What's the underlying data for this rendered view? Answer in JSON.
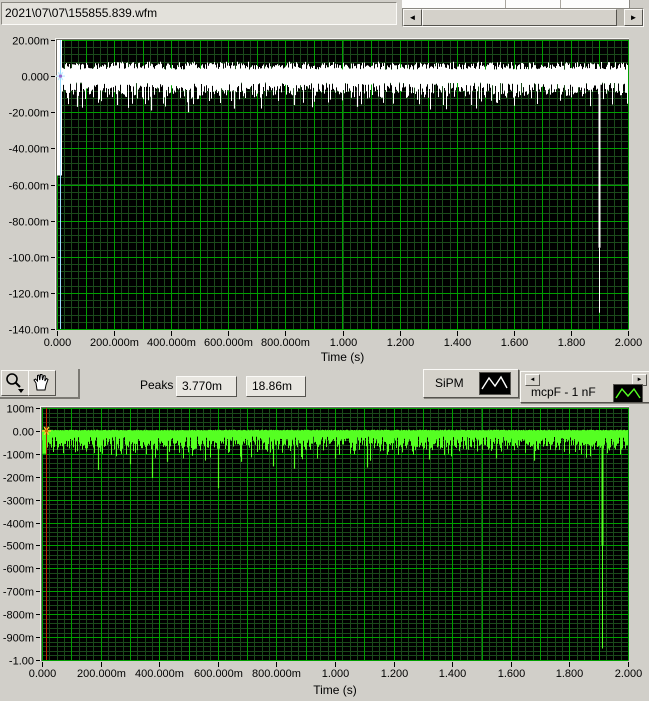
{
  "topbar": {
    "file_path": "2021\\07\\07\\155855.839.wfm",
    "scrollbar": {
      "left_arrow": "◄",
      "right_arrow": "►"
    }
  },
  "toolbar": {
    "peaks_label": "Peaks",
    "peak_values": [
      "3.770m",
      "18.86m"
    ],
    "tools": [
      "zoom",
      "pan"
    ]
  },
  "legends": [
    {
      "label": "SiPM",
      "line_color": "#ffffff"
    },
    {
      "label": "mcpF - 1 nF",
      "line_color": "#55ff22",
      "scroll_left": "◄",
      "scroll_right": "►"
    }
  ],
  "chart_data": [
    {
      "type": "line",
      "name": "SiPM waveform",
      "xlabel": "Time (s)",
      "xlim": [
        0,
        2
      ],
      "ylim": [
        -0.14,
        0.02
      ],
      "x_ticks": [
        {
          "v": 0,
          "label": "0.000"
        },
        {
          "v": 0.2,
          "label": "200.000m"
        },
        {
          "v": 0.4,
          "label": "400.000m"
        },
        {
          "v": 0.6,
          "label": "600.000m"
        },
        {
          "v": 0.8,
          "label": "800.000m"
        },
        {
          "v": 1.0,
          "label": "1.000"
        },
        {
          "v": 1.2,
          "label": "1.200"
        },
        {
          "v": 1.4,
          "label": "1.400"
        },
        {
          "v": 1.6,
          "label": "1.600"
        },
        {
          "v": 1.8,
          "label": "1.800"
        },
        {
          "v": 2.0,
          "label": "2.000"
        }
      ],
      "y_ticks": [
        {
          "v": 0.02,
          "label": "20.00m"
        },
        {
          "v": 0,
          "label": "0.000"
        },
        {
          "v": -0.02,
          "label": "-20.00m"
        },
        {
          "v": -0.04,
          "label": "-40.00m"
        },
        {
          "v": -0.06,
          "label": "-60.00m"
        },
        {
          "v": -0.08,
          "label": "-80.00m"
        },
        {
          "v": -0.1,
          "label": "-100.0m"
        },
        {
          "v": -0.12,
          "label": "-120.0m"
        },
        {
          "v": -0.14,
          "label": "-140.0m"
        }
      ],
      "grid": {
        "x_major": 0.1,
        "x_minor": 0.025,
        "y_major": 0.02,
        "y_minor": 0.004,
        "major_color": "#00a000",
        "minor_color": "#1b4a1b"
      },
      "bg": "#000000",
      "line_color": "#ffffff",
      "noise_band": {
        "top": 0.008,
        "bottom": -0.008,
        "tail_prob": 0.5,
        "tail_depth": 0.003
      },
      "spikes": [
        {
          "x": 0.008,
          "y": -0.055,
          "y_top": 0.02,
          "w": 5
        },
        {
          "x": 0.07,
          "y": -0.017
        },
        {
          "x": 0.21,
          "y": -0.016
        },
        {
          "x": 0.33,
          "y": -0.019
        },
        {
          "x": 0.46,
          "y": -0.02
        },
        {
          "x": 0.62,
          "y": -0.018
        },
        {
          "x": 0.83,
          "y": -0.016
        },
        {
          "x": 1.05,
          "y": -0.017
        },
        {
          "x": 1.45,
          "y": -0.016
        },
        {
          "x": 1.9,
          "y": -0.131,
          "thick_to": -0.095,
          "w": 2
        }
      ],
      "cursor": {
        "x": 0.012,
        "y": 0,
        "line_color": "#9adcff",
        "marker_color": "#c4ecff",
        "center_color": "#9966cc"
      }
    },
    {
      "type": "line",
      "name": "mcpF - 1 nF waveform",
      "xlabel": "Time (s)",
      "xlim": [
        0,
        2
      ],
      "ylim": [
        -1.0,
        0.1
      ],
      "x_ticks": [
        {
          "v": 0,
          "label": "0.000"
        },
        {
          "v": 0.2,
          "label": "200.000m"
        },
        {
          "v": 0.4,
          "label": "400.000m"
        },
        {
          "v": 0.6,
          "label": "600.000m"
        },
        {
          "v": 0.8,
          "label": "800.000m"
        },
        {
          "v": 1.0,
          "label": "1.000"
        },
        {
          "v": 1.2,
          "label": "1.200"
        },
        {
          "v": 1.4,
          "label": "1.400"
        },
        {
          "v": 1.6,
          "label": "1.600"
        },
        {
          "v": 1.8,
          "label": "1.800"
        },
        {
          "v": 2.0,
          "label": "2.000"
        }
      ],
      "y_ticks": [
        {
          "v": 0.1,
          "label": "100m"
        },
        {
          "v": 0,
          "label": "0.00"
        },
        {
          "v": -0.1,
          "label": "-100m"
        },
        {
          "v": -0.2,
          "label": "-200m"
        },
        {
          "v": -0.3,
          "label": "-300m"
        },
        {
          "v": -0.4,
          "label": "-400m"
        },
        {
          "v": -0.5,
          "label": "-500m"
        },
        {
          "v": -0.6,
          "label": "-600m"
        },
        {
          "v": -0.7,
          "label": "-700m"
        },
        {
          "v": -0.8,
          "label": "-800m"
        },
        {
          "v": -0.9,
          "label": "-900m"
        },
        {
          "v": -1.0,
          "label": "-1.00"
        }
      ],
      "grid": {
        "x_major": 0.1,
        "x_minor": 0.025,
        "y_major": 0.1,
        "y_minor": 0.02,
        "major_color": "#00a000",
        "minor_color": "#1b4a1b"
      },
      "bg": "#000000",
      "line_color": "#55ff22",
      "noise_band": {
        "top": 0.005,
        "bottom": -0.055,
        "tail_prob": 0.6,
        "tail_depth": 0.022
      },
      "spikes": [
        {
          "x": 0.008,
          "y": -0.1,
          "y_top": 0.005,
          "w": 4
        },
        {
          "x": 0.19,
          "y": -0.17
        },
        {
          "x": 0.3,
          "y": -0.145
        },
        {
          "x": 0.375,
          "y": -0.205
        },
        {
          "x": 0.425,
          "y": -0.135
        },
        {
          "x": 0.6,
          "y": -0.25
        },
        {
          "x": 0.68,
          "y": -0.135
        },
        {
          "x": 0.79,
          "y": -0.155
        },
        {
          "x": 0.86,
          "y": -0.165
        },
        {
          "x": 1.0,
          "y": -0.12
        },
        {
          "x": 1.11,
          "y": -0.16
        },
        {
          "x": 1.32,
          "y": -0.125
        },
        {
          "x": 1.55,
          "y": -0.12
        },
        {
          "x": 1.68,
          "y": -0.13
        },
        {
          "x": 1.91,
          "y": -0.95,
          "thick_to": -0.5,
          "w": 2
        }
      ],
      "cursor": {
        "x": 0.015,
        "y": 0,
        "line_color": "#c22000",
        "marker_color": "#ffcc33",
        "center_color": "#cc6600"
      }
    }
  ]
}
